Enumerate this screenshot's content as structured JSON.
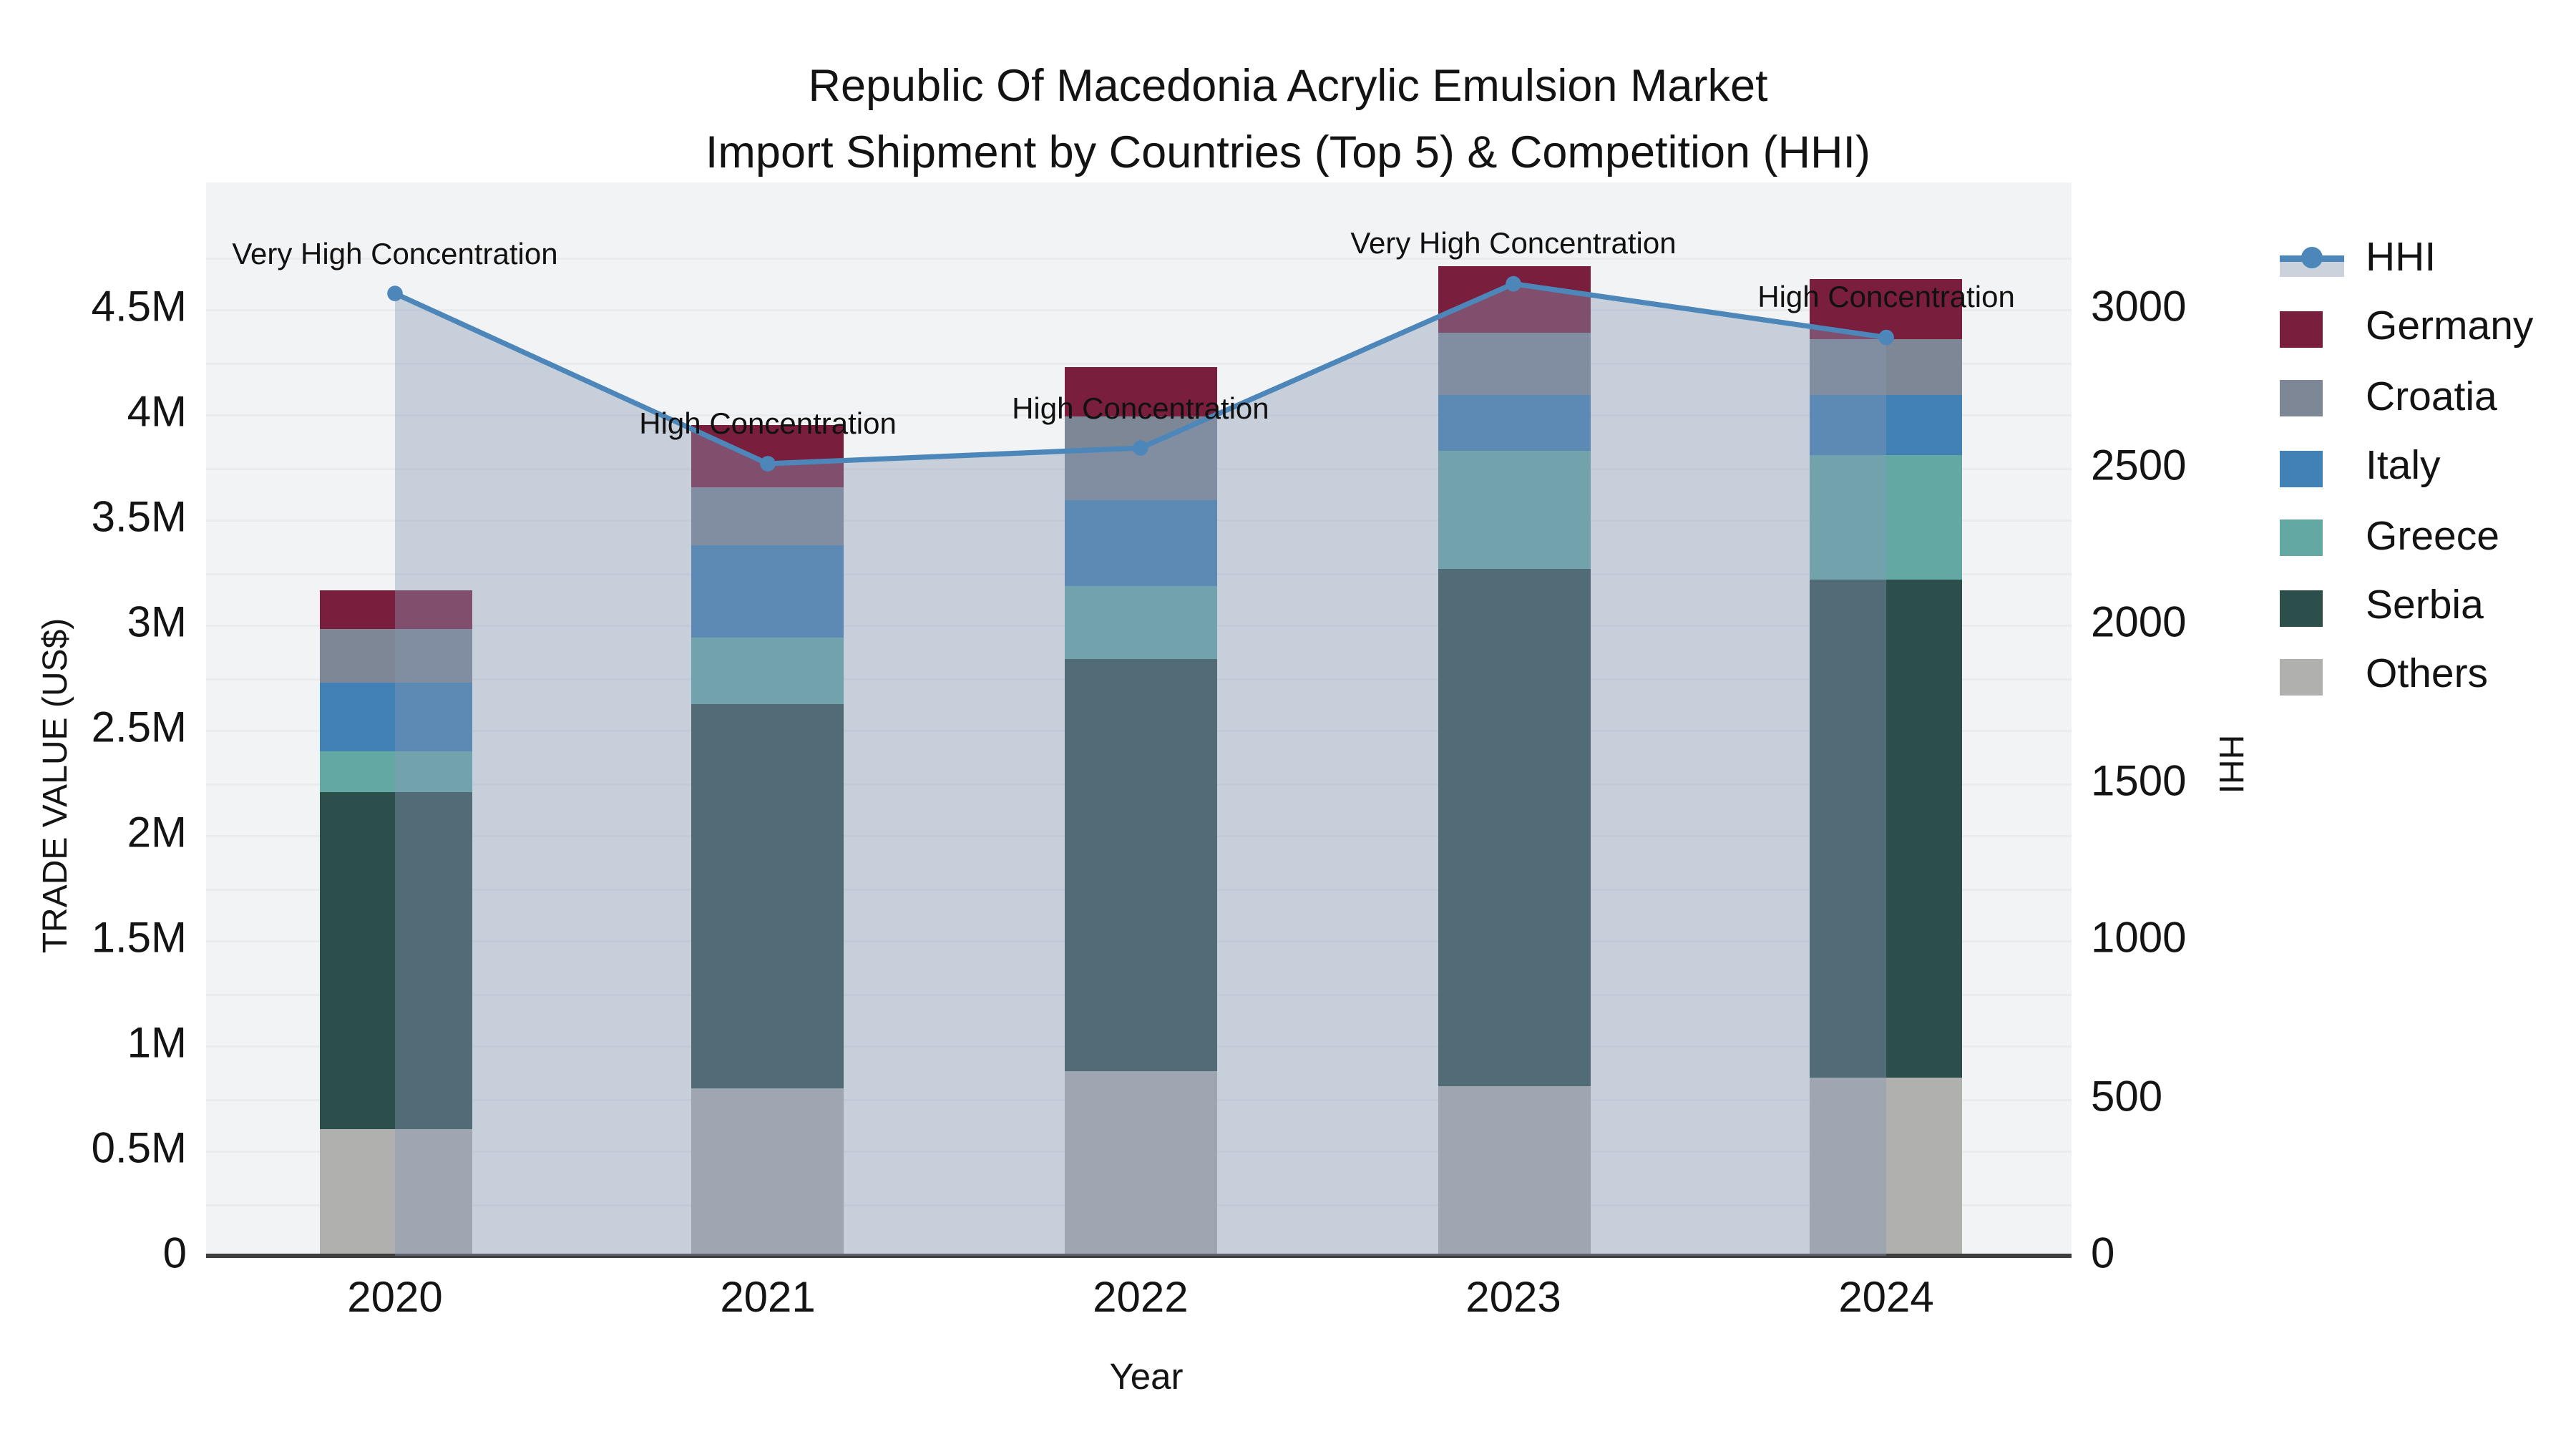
{
  "chart_data": {
    "type": "bar",
    "subtype": "stacked-bars-with-line-and-area",
    "title_line1": "Republic Of Macedonia Acrylic Emulsion Market",
    "title_line2": "Import Shipment by Countries (Top 5) & Competition (HHI)",
    "xlabel": "Year",
    "ylabel_left": "TRADE VALUE (US$)",
    "ylabel_right": "HHI",
    "categories": [
      "2020",
      "2021",
      "2022",
      "2023",
      "2024"
    ],
    "bar_value_unit": "million US$ (left axis)",
    "stack_series_bottom_to_top": [
      {
        "name": "Others",
        "color": "#b0b0ae",
        "values": [
          0.6,
          0.8,
          0.88,
          0.81,
          0.85
        ]
      },
      {
        "name": "Serbia",
        "color": "#2d4f4b",
        "values": [
          1.6,
          1.82,
          1.96,
          2.46,
          2.36
        ]
      },
      {
        "name": "Greece",
        "color": "#64a8a4",
        "values": [
          0.2,
          0.32,
          0.34,
          0.56,
          0.6
        ]
      },
      {
        "name": "Italy",
        "color": "#4181b5",
        "values": [
          0.33,
          0.44,
          0.41,
          0.26,
          0.28
        ]
      },
      {
        "name": "Croatia",
        "color": "#7d8795",
        "values": [
          0.25,
          0.27,
          0.4,
          0.3,
          0.27
        ]
      },
      {
        "name": "Germany",
        "color": "#7a1e3d",
        "values": [
          0.18,
          0.3,
          0.23,
          0.31,
          0.28
        ]
      }
    ],
    "bar_totals": [
      3.16,
      3.95,
      4.22,
      4.7,
      4.64
    ],
    "line_series": {
      "name": "HHI",
      "axis": "right",
      "color": "#4d87ba",
      "area_fill": "rgba(135,152,182,0.40)",
      "values": [
        3050,
        2510,
        2560,
        3080,
        2910
      ]
    },
    "annotations": [
      {
        "category": "2020",
        "text": "Very High Concentration"
      },
      {
        "category": "2021",
        "text": "High Concentration"
      },
      {
        "category": "2022",
        "text": "High Concentration"
      },
      {
        "category": "2023",
        "text": "Very High Concentration"
      },
      {
        "category": "2024",
        "text": "High Concentration"
      }
    ],
    "left_axis_ticks": [
      {
        "label": "0",
        "value": 0
      },
      {
        "label": "0.5M",
        "value": 0.5
      },
      {
        "label": "1M",
        "value": 1
      },
      {
        "label": "1.5M",
        "value": 1.5
      },
      {
        "label": "2M",
        "value": 2
      },
      {
        "label": "2.5M",
        "value": 2.5
      },
      {
        "label": "3M",
        "value": 3
      },
      {
        "label": "3.5M",
        "value": 3.5
      },
      {
        "label": "4M",
        "value": 4
      },
      {
        "label": "4.5M",
        "value": 4.5
      }
    ],
    "right_axis_ticks": [
      {
        "label": "0",
        "value": 0
      },
      {
        "label": "500",
        "value": 500
      },
      {
        "label": "1000",
        "value": 1000
      },
      {
        "label": "1500",
        "value": 1500
      },
      {
        "label": "2000",
        "value": 2000
      },
      {
        "label": "2500",
        "value": 2500
      },
      {
        "label": "3000",
        "value": 3000
      }
    ],
    "legend_order": [
      "HHI",
      "Germany",
      "Croatia",
      "Italy",
      "Greece",
      "Serbia",
      "Others"
    ],
    "grid": true,
    "legend_position": "outside-top-right",
    "colors": {
      "plot_background": "#f2f3f4",
      "gridline": "#e9ebed",
      "axis_line": "#3d3d3d",
      "hhi_line": "#4d87ba"
    }
  }
}
